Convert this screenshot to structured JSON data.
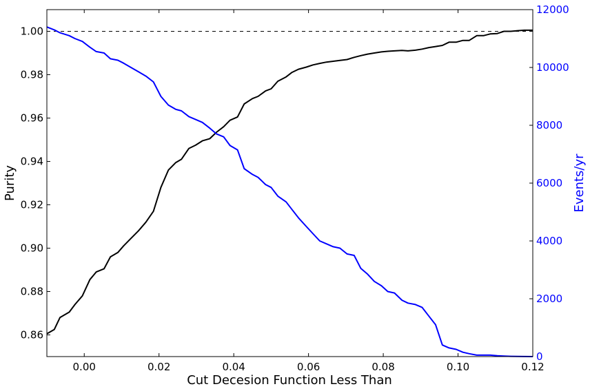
{
  "chart_data": {
    "type": "line",
    "title": "",
    "xlabel": "Cut Decesion Function Less Than",
    "ylabel_left": "Purity",
    "ylabel_right": "Events/yr",
    "xlim": [
      -0.01,
      0.12
    ],
    "ylim_left": [
      0.85,
      1.01
    ],
    "ylim_right": [
      0,
      12000
    ],
    "xticks": [
      "0.00",
      "0.02",
      "0.04",
      "0.06",
      "0.08",
      "0.10",
      "0.12"
    ],
    "xtick_values": [
      0.0,
      0.02,
      0.04,
      0.06,
      0.08,
      0.1,
      0.12
    ],
    "yticks_left": [
      "0.86",
      "0.88",
      "0.90",
      "0.92",
      "0.94",
      "0.96",
      "0.98",
      "1.00"
    ],
    "ytick_values_left": [
      0.86,
      0.88,
      0.9,
      0.92,
      0.94,
      0.96,
      0.98,
      1.0
    ],
    "yticks_right": [
      "0",
      "2000",
      "4000",
      "6000",
      "8000",
      "10000",
      "12000"
    ],
    "ytick_values_right": [
      0,
      2000,
      4000,
      6000,
      8000,
      10000,
      12000
    ],
    "reference_line": {
      "axis": "left",
      "y": 1.0,
      "style": "dashed",
      "color": "#000000"
    },
    "colors": {
      "purity": "#000000",
      "events": "#0000ff",
      "right_axis": "#0000ff"
    },
    "series": [
      {
        "name": "Purity",
        "axis": "left",
        "color": "#000000",
        "x": [
          -0.01,
          -0.008,
          -0.0065,
          -0.004,
          -0.0025,
          -0.0005,
          0.0015,
          0.0032,
          0.0053,
          0.007,
          0.009,
          0.0105,
          0.0125,
          0.0145,
          0.0165,
          0.0185,
          0.0205,
          0.0225,
          0.0245,
          0.026,
          0.028,
          0.0298,
          0.0316,
          0.0336,
          0.0354,
          0.0373,
          0.039,
          0.041,
          0.0428,
          0.045,
          0.0465,
          0.0485,
          0.05,
          0.0518,
          0.054,
          0.0555,
          0.0573,
          0.0594,
          0.0612,
          0.063,
          0.0648,
          0.0666,
          0.0684,
          0.0703,
          0.0722,
          0.074,
          0.0758,
          0.0776,
          0.0795,
          0.0812,
          0.083,
          0.085,
          0.0866,
          0.0886,
          0.0904,
          0.0922,
          0.094,
          0.0958,
          0.0976,
          0.0995,
          0.1013,
          0.103,
          0.105,
          0.1068,
          0.1086,
          0.1105,
          0.1123,
          0.1141,
          0.1159,
          0.1177,
          0.12
        ],
        "y": [
          0.8605,
          0.8625,
          0.868,
          0.8705,
          0.874,
          0.878,
          0.8855,
          0.889,
          0.8905,
          0.896,
          0.898,
          0.901,
          0.9045,
          0.908,
          0.912,
          0.917,
          0.928,
          0.936,
          0.9395,
          0.941,
          0.946,
          0.9475,
          0.9495,
          0.9505,
          0.9535,
          0.956,
          0.959,
          0.9605,
          0.9665,
          0.969,
          0.97,
          0.9725,
          0.9735,
          0.977,
          0.979,
          0.981,
          0.9825,
          0.9835,
          0.9845,
          0.9852,
          0.9858,
          0.9862,
          0.9866,
          0.987,
          0.988,
          0.9888,
          0.9895,
          0.99,
          0.9905,
          0.9908,
          0.991,
          0.9912,
          0.991,
          0.9913,
          0.9918,
          0.9925,
          0.993,
          0.9935,
          0.995,
          0.995,
          0.9958,
          0.9958,
          0.998,
          0.998,
          0.9988,
          0.999,
          1.0,
          1.0,
          1.0003,
          1.0005,
          1.0005
        ]
      },
      {
        "name": "Events/yr",
        "axis": "right",
        "color": "#0000ff",
        "x": [
          -0.01,
          -0.008,
          -0.0065,
          -0.004,
          -0.0025,
          -0.0005,
          0.0015,
          0.0032,
          0.0053,
          0.007,
          0.009,
          0.0105,
          0.0125,
          0.0145,
          0.0165,
          0.0185,
          0.0205,
          0.0225,
          0.0245,
          0.026,
          0.028,
          0.0298,
          0.0316,
          0.0336,
          0.0354,
          0.0373,
          0.039,
          0.041,
          0.0428,
          0.045,
          0.0465,
          0.0485,
          0.05,
          0.0518,
          0.054,
          0.0555,
          0.0573,
          0.0594,
          0.0612,
          0.063,
          0.0648,
          0.0666,
          0.0684,
          0.0703,
          0.0722,
          0.074,
          0.0758,
          0.0776,
          0.0795,
          0.0812,
          0.083,
          0.085,
          0.0866,
          0.0886,
          0.0904,
          0.0922,
          0.094,
          0.0958,
          0.0976,
          0.0995,
          0.1013,
          0.103,
          0.105,
          0.1068,
          0.1086,
          0.1105,
          0.1123,
          0.1141,
          0.1159,
          0.1177,
          0.12
        ],
        "y": [
          11400,
          11300,
          11200,
          11100,
          11000,
          10900,
          10700,
          10550,
          10500,
          10300,
          10250,
          10150,
          10000,
          9850,
          9700,
          9500,
          9000,
          8700,
          8550,
          8500,
          8300,
          8200,
          8100,
          7900,
          7700,
          7600,
          7300,
          7150,
          6500,
          6300,
          6200,
          5950,
          5850,
          5550,
          5350,
          5100,
          4800,
          4500,
          4250,
          4000,
          3900,
          3800,
          3750,
          3550,
          3500,
          3050,
          2850,
          2600,
          2450,
          2250,
          2200,
          1950,
          1850,
          1800,
          1700,
          1400,
          1100,
          400,
          300,
          250,
          150,
          100,
          50,
          50,
          50,
          30,
          20,
          10,
          5,
          2,
          0
        ]
      }
    ]
  }
}
